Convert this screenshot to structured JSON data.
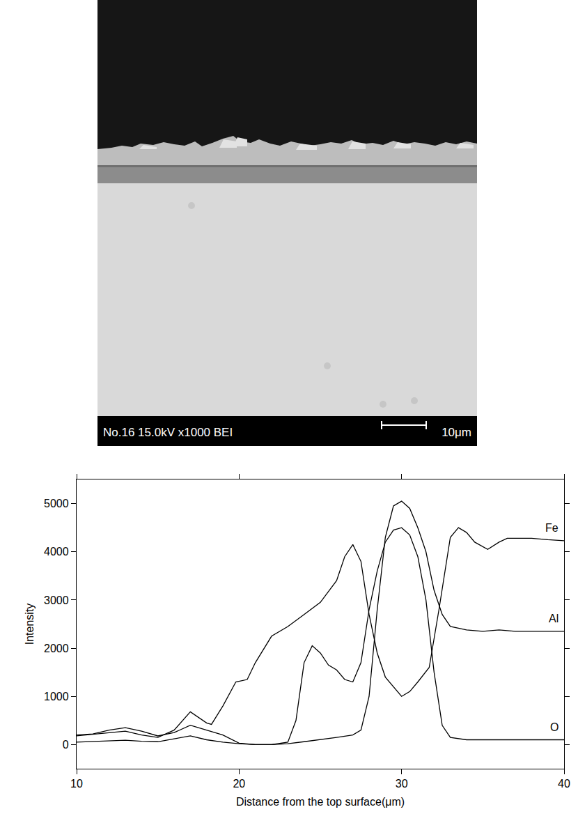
{
  "chart_data": {
    "type": "line",
    "x_label": "Distance from the top surface(μm)",
    "y_label": "Intensity",
    "xlim": [
      10,
      40
    ],
    "ylim": [
      -500,
      5500
    ],
    "xticks": [
      10,
      20,
      30,
      40
    ],
    "yticks": [
      0,
      1000,
      2000,
      3000,
      4000,
      5000
    ],
    "grid": false,
    "series": [
      {
        "name": "Fe",
        "color": "#000000",
        "x": [
          10,
          12,
          13,
          14,
          15,
          16,
          17,
          18,
          18.3,
          19,
          19.8,
          20.5,
          21,
          22,
          23,
          24,
          25,
          26,
          26.5,
          27,
          27.5,
          28,
          28.5,
          29,
          30,
          30.5,
          31,
          31.7,
          32.3,
          33,
          33.5,
          34,
          34.5,
          35.3,
          36,
          36.5,
          38,
          39,
          40
        ],
        "values": [
          180,
          250,
          280,
          200,
          150,
          300,
          680,
          450,
          420,
          800,
          1300,
          1350,
          1700,
          2250,
          2450,
          2700,
          2950,
          3400,
          3900,
          4150,
          3800,
          2700,
          1900,
          1400,
          1000,
          1100,
          1300,
          1600,
          2800,
          4300,
          4500,
          4400,
          4200,
          4050,
          4200,
          4280,
          4280,
          4250,
          4230
        ]
      },
      {
        "name": "Al",
        "color": "#000000",
        "x": [
          10,
          11,
          12,
          13,
          14,
          15,
          16,
          17,
          18,
          19,
          20,
          21,
          22,
          23,
          24,
          25,
          26,
          27,
          27.5,
          28,
          28.5,
          29,
          29.5,
          30,
          30.5,
          31,
          31.5,
          32,
          32.5,
          33,
          34,
          35,
          36,
          37,
          40
        ],
        "values": [
          200,
          220,
          300,
          350,
          280,
          180,
          250,
          400,
          300,
          200,
          30,
          0,
          0,
          20,
          60,
          100,
          150,
          200,
          300,
          1000,
          2800,
          4300,
          4950,
          5050,
          4900,
          4500,
          4000,
          3200,
          2700,
          2450,
          2380,
          2350,
          2380,
          2350,
          2350
        ]
      },
      {
        "name": "O",
        "color": "#000000",
        "x": [
          10,
          12,
          13,
          14,
          15,
          16,
          17,
          18,
          19,
          20,
          21,
          22,
          23,
          23.5,
          24,
          24.5,
          25,
          25.5,
          26,
          26.5,
          27,
          27.5,
          28,
          28.5,
          29,
          29.5,
          30,
          30.5,
          31,
          31.5,
          32,
          32.5,
          33,
          34,
          40
        ],
        "values": [
          50,
          70,
          90,
          70,
          60,
          120,
          180,
          100,
          50,
          20,
          0,
          0,
          50,
          500,
          1700,
          2050,
          1900,
          1650,
          1550,
          1350,
          1300,
          1700,
          2800,
          3600,
          4200,
          4450,
          4500,
          4350,
          3900,
          3000,
          1500,
          400,
          150,
          100,
          100
        ]
      }
    ]
  },
  "micrograph": {
    "caption": "No.16 15.0kV x1000 BEI",
    "scale_bar": "10μm"
  }
}
